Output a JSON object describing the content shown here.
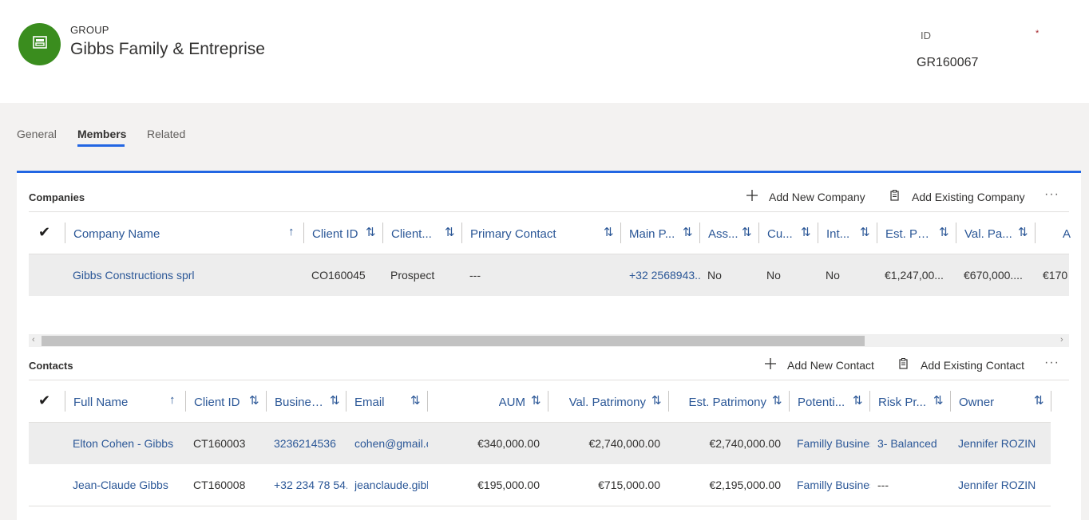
{
  "header": {
    "entity_type": "GROUP",
    "entity_name": "Gibbs Family & Entreprise",
    "id_label": "ID",
    "id_required": "*",
    "id_value": "GR160067",
    "avatar_color": "#3a8d1e"
  },
  "tabs": [
    {
      "label": "General",
      "active": false
    },
    {
      "label": "Members",
      "active": true
    },
    {
      "label": "Related",
      "active": false
    }
  ],
  "companies": {
    "title": "Companies",
    "add_new_label": "Add New Company",
    "add_existing_label": "Add Existing Company",
    "more_label": "···",
    "columns": [
      "Company Name",
      "Client ID",
      "Client...",
      "Primary Contact",
      "Main P...",
      "Ass...",
      "Cu...",
      "Int...",
      "Est. Pat...",
      "Val. Pa...",
      "A"
    ],
    "rows": [
      {
        "name": "Gibbs Constructions sprl",
        "client_id": "CO160045",
        "client_type": "Prospect",
        "primary_contact": "---",
        "main_phone": "+32 2568943...",
        "ass": "No",
        "cu": "No",
        "int": "No",
        "est_pat": "€1,247,00...",
        "val_pa": "€670,000....",
        "extra": "€170"
      }
    ]
  },
  "contacts": {
    "title": "Contacts",
    "add_new_label": "Add New Contact",
    "add_existing_label": "Add Existing Contact",
    "more_label": "···",
    "columns": [
      "Full Name",
      "Client ID",
      "Busines...",
      "Email",
      "AUM",
      "Val. Patrimony",
      "Est. Patrimony",
      "Potenti...",
      "Risk Pr...",
      "Owner"
    ],
    "rows": [
      {
        "full_name": "Elton Cohen - Gibbs",
        "client_id": "CT160003",
        "business_phone": "3236214536",
        "email": "cohen@gmail.c",
        "aum": "€340,000.00",
        "val_patrimony": "€2,740,000.00",
        "est_patrimony": "€2,740,000.00",
        "potential": "Familly Business",
        "risk_profile": "3- Balanced",
        "owner": "Jennifer ROZIN"
      },
      {
        "full_name": "Jean-Claude Gibbs",
        "client_id": "CT160008",
        "business_phone": "+32 234 78 54...",
        "email": "jeanclaude.gibb",
        "aum": "€195,000.00",
        "val_patrimony": "€715,000.00",
        "est_patrimony": "€2,195,000.00",
        "potential": "Familly Business",
        "risk_profile": "---",
        "owner": "Jennifer ROZIN"
      }
    ]
  },
  "icons": {
    "check": "✔",
    "sort_asc": "↑",
    "sort_both": "⇅",
    "scroll_left": "‹",
    "scroll_right": "›"
  }
}
